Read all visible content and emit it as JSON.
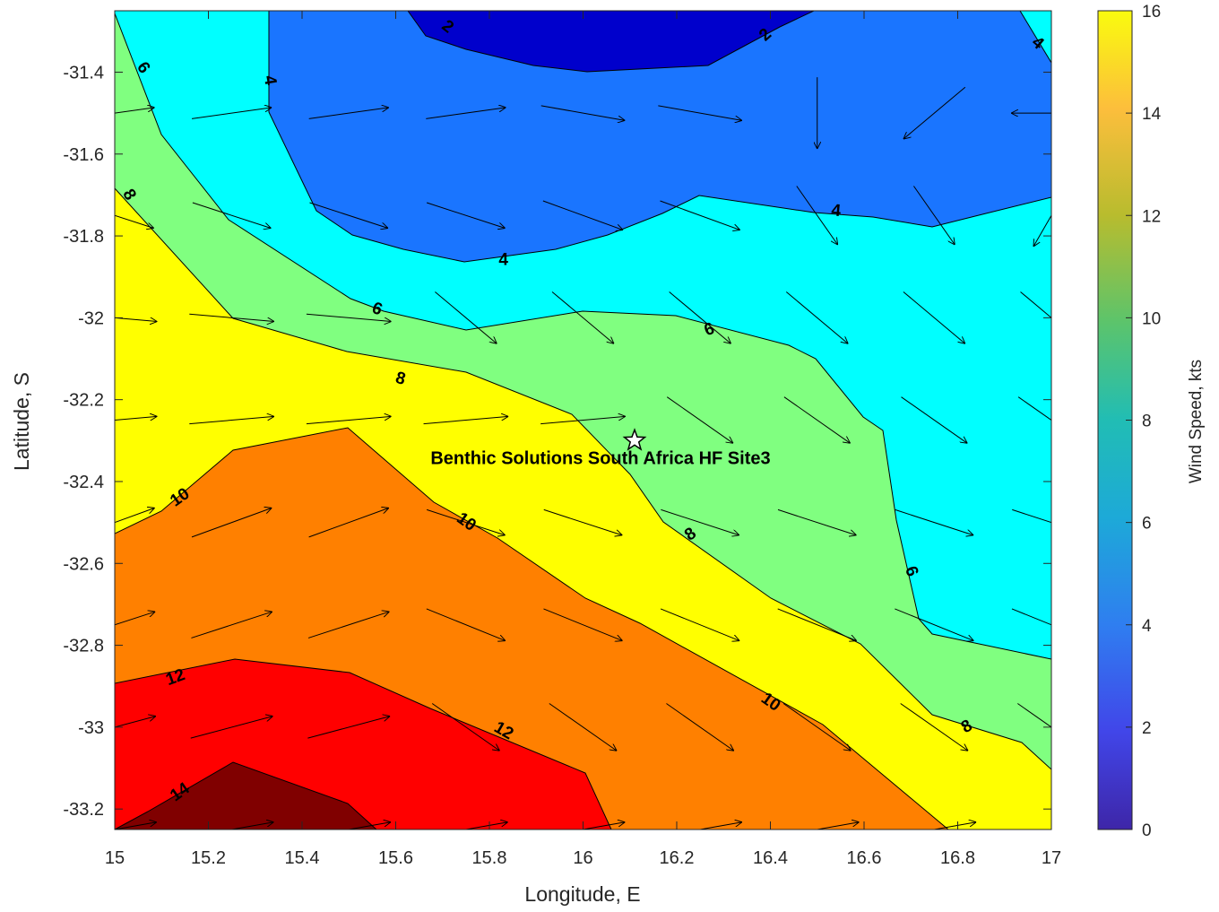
{
  "chart_data": {
    "type": "contour",
    "xlabel": "Longitude, E",
    "ylabel": "Latitude, S",
    "xlim": [
      15,
      17
    ],
    "ylim": [
      -33.25,
      -31.25
    ],
    "x_ticks": [
      "15",
      "15.2",
      "15.4",
      "15.6",
      "15.8",
      "16",
      "16.2",
      "16.4",
      "16.6",
      "16.8",
      "17"
    ],
    "y_ticks": [
      "-31.4",
      "-31.6",
      "-31.8",
      "-32",
      "-32.2",
      "-32.4",
      "-32.6",
      "-32.8",
      "-33",
      "-33.2"
    ],
    "colorbar": {
      "label": "Wind Speed, kts",
      "range": [
        0,
        16
      ],
      "ticks": [
        "0",
        "2",
        "4",
        "6",
        "8",
        "10",
        "12",
        "14",
        "16"
      ]
    },
    "contour_levels": [
      2,
      4,
      6,
      8,
      10,
      12,
      14
    ],
    "fill_colors": {
      "0-2": "#0000cc",
      "2-4": "#1a75ff",
      "4-6": "#00ffff",
      "6-8": "#80ff80",
      "8-10": "#ffff00",
      "10-12": "#ff8000",
      "12-14": "#ff0000",
      "14-16": "#800000"
    },
    "contour_labels": [
      {
        "text": "2",
        "lon": 15.71,
        "lat": -31.29,
        "angle": 38
      },
      {
        "text": "2",
        "lon": 16.39,
        "lat": -31.31,
        "angle": -42
      },
      {
        "text": "4",
        "lon": 16.97,
        "lat": -31.33,
        "angle": 40
      },
      {
        "text": "4",
        "lon": 15.33,
        "lat": -31.42,
        "angle": 80
      },
      {
        "text": "4",
        "lon": 15.83,
        "lat": -31.86,
        "angle": 0
      },
      {
        "text": "4",
        "lon": 16.54,
        "lat": -31.74,
        "angle": 5
      },
      {
        "text": "6",
        "lon": 15.06,
        "lat": -31.39,
        "angle": 55
      },
      {
        "text": "6",
        "lon": 15.56,
        "lat": -31.98,
        "angle": 20
      },
      {
        "text": "6",
        "lon": 16.27,
        "lat": -32.03,
        "angle": -20
      },
      {
        "text": "6",
        "lon": 16.7,
        "lat": -32.62,
        "angle": 70
      },
      {
        "text": "8",
        "lon": 15.03,
        "lat": -31.7,
        "angle": 60
      },
      {
        "text": "8",
        "lon": 15.61,
        "lat": -32.15,
        "angle": 15
      },
      {
        "text": "8",
        "lon": 16.23,
        "lat": -32.53,
        "angle": -35
      },
      {
        "text": "8",
        "lon": 16.82,
        "lat": -33.0,
        "angle": -30
      },
      {
        "text": "10",
        "lon": 15.14,
        "lat": -32.44,
        "angle": -35
      },
      {
        "text": "10",
        "lon": 15.75,
        "lat": -32.5,
        "angle": 35
      },
      {
        "text": "10",
        "lon": 16.4,
        "lat": -32.94,
        "angle": 35
      },
      {
        "text": "12",
        "lon": 15.13,
        "lat": -32.88,
        "angle": -20
      },
      {
        "text": "12",
        "lon": 15.83,
        "lat": -33.01,
        "angle": 30
      },
      {
        "text": "14",
        "lon": 15.14,
        "lat": -33.16,
        "angle": -35
      }
    ],
    "site": {
      "name": "Benthic Solutions South Africa HF Site3",
      "lon": 16.11,
      "lat": -32.3
    },
    "wind_arrows_u_v": [
      [
        1,
        0.35,
        0.13
      ],
      [
        2,
        0.35,
        0.2
      ],
      [
        3,
        0.3,
        0.15
      ],
      [
        4,
        0.35,
        0.2
      ],
      [
        5,
        0.25,
        0.15
      ],
      [
        6,
        0.22,
        0.22
      ],
      [
        7,
        0.3,
        0.1
      ],
      [
        8,
        0.35,
        0.12
      ]
    ]
  }
}
